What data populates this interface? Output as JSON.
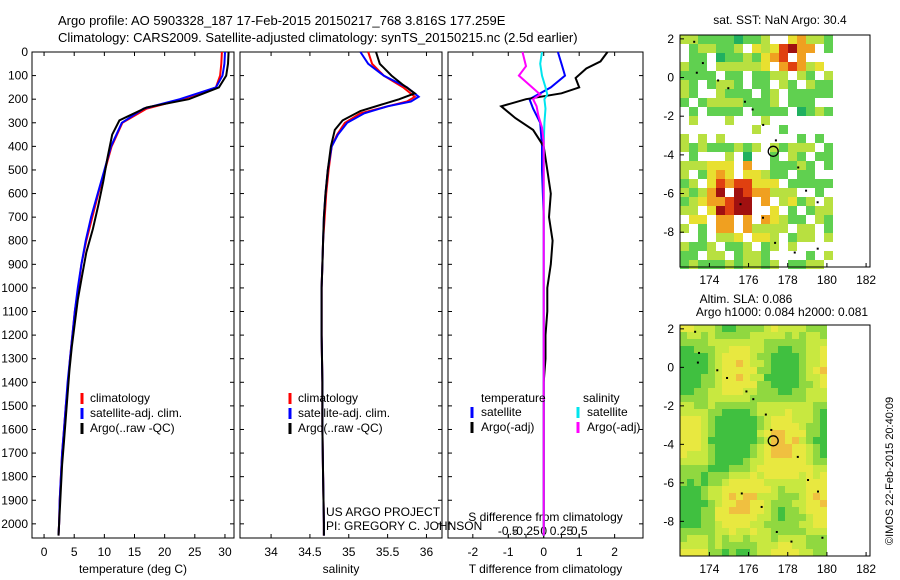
{
  "header": {
    "line1": "Argo profile: AO 5903328_187 17-Feb-2015 20150217_768 3.816S 177.259E",
    "line2": "Climatology: CARS2009. Satellite-adjusted climatology: synTS_20150215.nc (2.5d earlier)"
  },
  "depth_ticks": [
    "0",
    "100",
    "200",
    "300",
    "400",
    "500",
    "600",
    "700",
    "800",
    "900",
    "1000",
    "1100",
    "1200",
    "1300",
    "1400",
    "1500",
    "1600",
    "1700",
    "1800",
    "1900",
    "2000"
  ],
  "colors": {
    "clim": "#ff0000",
    "sat": "#0000ff",
    "argo": "#000000",
    "sat_s": "#00e5ee",
    "argo_s": "#ff00ff"
  },
  "chart_data": [
    {
      "type": "line",
      "id": "temperature",
      "xlabel": "temperature (deg C)",
      "ylabel": "",
      "xlim": [
        -2,
        31.5
      ],
      "ylim": [
        2060,
        0
      ],
      "xticks": [
        0,
        5,
        10,
        15,
        20,
        25,
        30
      ],
      "xtick_labels": [
        "0",
        "5",
        "10",
        "15",
        "20",
        "25",
        "30"
      ],
      "legend": [
        "climatology",
        "satellite-adj. clim.",
        "Argo(..raw -QC)"
      ],
      "series": [
        {
          "name": "climatology",
          "color": "#ff0000",
          "points": [
            [
              29.5,
              0
            ],
            [
              29.4,
              50
            ],
            [
              29.2,
              100
            ],
            [
              28.5,
              150
            ],
            [
              23,
              200
            ],
            [
              17,
              240
            ],
            [
              13,
              300
            ],
            [
              11.2,
              400
            ],
            [
              10.1,
              500
            ],
            [
              9,
              600
            ],
            [
              8,
              700
            ],
            [
              7,
              800
            ],
            [
              6.2,
              900
            ],
            [
              5.7,
              1000
            ],
            [
              5.1,
              1100
            ],
            [
              4.7,
              1200
            ],
            [
              4.3,
              1300
            ],
            [
              4,
              1400
            ],
            [
              3.6,
              1500
            ],
            [
              3.3,
              1600
            ],
            [
              3,
              1700
            ],
            [
              2.8,
              1800
            ],
            [
              2.6,
              1900
            ],
            [
              2.5,
              2000
            ],
            [
              2.4,
              2050
            ]
          ]
        },
        {
          "name": "satellite-adj. clim.",
          "color": "#0000ff",
          "points": [
            [
              30,
              0
            ],
            [
              29.9,
              50
            ],
            [
              29.6,
              100
            ],
            [
              28.5,
              150
            ],
            [
              22.5,
              200
            ],
            [
              16.5,
              240
            ],
            [
              12.9,
              300
            ],
            [
              11.1,
              400
            ],
            [
              10,
              500
            ],
            [
              8.9,
              600
            ],
            [
              7.8,
              700
            ],
            [
              6.9,
              800
            ],
            [
              6.2,
              900
            ],
            [
              5.6,
              1000
            ],
            [
              5.1,
              1100
            ],
            [
              4.7,
              1200
            ],
            [
              4.3,
              1300
            ],
            [
              3.9,
              1400
            ],
            [
              3.6,
              1500
            ],
            [
              3.3,
              1600
            ],
            [
              3,
              1700
            ],
            [
              2.8,
              1800
            ],
            [
              2.6,
              1900
            ],
            [
              2.5,
              2000
            ],
            [
              2.4,
              2050
            ]
          ]
        },
        {
          "name": "Argo(..raw -QC)",
          "color": "#000000",
          "points": [
            [
              30.6,
              0
            ],
            [
              30.5,
              50
            ],
            [
              30.2,
              100
            ],
            [
              29,
              150
            ],
            [
              24,
              200
            ],
            [
              17,
              235
            ],
            [
              12.5,
              290
            ],
            [
              11.3,
              350
            ],
            [
              10.5,
              450
            ],
            [
              9.8,
              550
            ],
            [
              9,
              650
            ],
            [
              8.1,
              750
            ],
            [
              7,
              850
            ],
            [
              6.3,
              950
            ],
            [
              5.6,
              1050
            ],
            [
              5.1,
              1150
            ],
            [
              4.6,
              1250
            ],
            [
              4.2,
              1350
            ],
            [
              3.9,
              1450
            ],
            [
              3.6,
              1550
            ],
            [
              3.3,
              1650
            ],
            [
              3,
              1750
            ],
            [
              2.8,
              1850
            ],
            [
              2.6,
              1950
            ],
            [
              2.5,
              2000
            ],
            [
              2.4,
              2050
            ]
          ]
        }
      ]
    },
    {
      "type": "line",
      "id": "salinity",
      "xlabel": "salinity",
      "ylabel": "",
      "xlim": [
        33.6,
        36.2
      ],
      "ylim": [
        2060,
        0
      ],
      "xticks": [
        34,
        34.5,
        35,
        35.5,
        36
      ],
      "xtick_labels": [
        "34",
        "34.5",
        "35",
        "35.5",
        "36"
      ],
      "legend": [
        "climatology",
        "satellite-adj. clim.",
        "Argo(..raw -QC)"
      ],
      "series": [
        {
          "name": "climatology",
          "color": "#ff0000",
          "points": [
            [
              35.25,
              0
            ],
            [
              35.3,
              50
            ],
            [
              35.45,
              100
            ],
            [
              35.7,
              150
            ],
            [
              35.85,
              190
            ],
            [
              35.75,
              210
            ],
            [
              35.5,
              230
            ],
            [
              35.15,
              260
            ],
            [
              34.95,
              300
            ],
            [
              34.85,
              350
            ],
            [
              34.78,
              400
            ],
            [
              34.74,
              500
            ],
            [
              34.71,
              600
            ],
            [
              34.69,
              700
            ],
            [
              34.67,
              800
            ],
            [
              34.66,
              900
            ],
            [
              34.65,
              1000
            ],
            [
              34.65,
              1200
            ],
            [
              34.66,
              1400
            ],
            [
              34.66,
              1600
            ],
            [
              34.67,
              1800
            ],
            [
              34.68,
              2000
            ],
            [
              34.68,
              2050
            ]
          ]
        },
        {
          "name": "satellite-adj. clim.",
          "color": "#0000ff",
          "points": [
            [
              35.15,
              0
            ],
            [
              35.25,
              50
            ],
            [
              35.45,
              100
            ],
            [
              35.75,
              150
            ],
            [
              35.9,
              190
            ],
            [
              35.8,
              210
            ],
            [
              35.5,
              230
            ],
            [
              35.2,
              260
            ],
            [
              34.98,
              300
            ],
            [
              34.86,
              350
            ],
            [
              34.78,
              400
            ],
            [
              34.73,
              500
            ],
            [
              34.7,
              600
            ],
            [
              34.68,
              700
            ],
            [
              34.67,
              800
            ],
            [
              34.66,
              900
            ],
            [
              34.65,
              1000
            ],
            [
              34.65,
              1200
            ],
            [
              34.66,
              1400
            ],
            [
              34.66,
              1600
            ],
            [
              34.67,
              1800
            ],
            [
              34.68,
              2000
            ],
            [
              34.68,
              2050
            ]
          ]
        },
        {
          "name": "Argo(..raw -QC)",
          "color": "#000000",
          "points": [
            [
              35.35,
              0
            ],
            [
              35.4,
              50
            ],
            [
              35.55,
              100
            ],
            [
              35.7,
              140
            ],
            [
              35.85,
              175
            ],
            [
              35.65,
              200
            ],
            [
              35.45,
              220
            ],
            [
              35.15,
              250
            ],
            [
              34.92,
              290
            ],
            [
              34.82,
              330
            ],
            [
              34.77,
              400
            ],
            [
              34.73,
              500
            ],
            [
              34.7,
              600
            ],
            [
              34.68,
              700
            ],
            [
              34.67,
              800
            ],
            [
              34.66,
              900
            ],
            [
              34.65,
              1000
            ],
            [
              34.65,
              1200
            ],
            [
              34.66,
              1400
            ],
            [
              34.66,
              1600
            ],
            [
              34.67,
              1800
            ],
            [
              34.68,
              2000
            ],
            [
              34.68,
              2050
            ]
          ]
        }
      ]
    },
    {
      "type": "line",
      "id": "difference",
      "xlabel": "T difference from climatology",
      "xlabel2": "S difference from climatology",
      "ylabel": "",
      "xlim": [
        -2.7,
        2.8
      ],
      "ylim": [
        2060,
        0
      ],
      "xticks": [
        -2,
        -1,
        0,
        1,
        2
      ],
      "xtick_labels": [
        "-2",
        "-1",
        "0",
        "1",
        "2"
      ],
      "xticks_top": [
        -1,
        -0.5,
        0,
        0.5,
        1
      ],
      "xtick_labels_top": [
        "-0.5",
        "-0.25",
        "0",
        "0.25",
        "0.5"
      ],
      "legend_headers": [
        "temperature",
        "salinity"
      ],
      "legend": [
        "satellite",
        "Argo(-adj)",
        "satellite",
        "Argo(-adj)"
      ],
      "series": [
        {
          "name": "T satellite",
          "color": "#0000ff",
          "points": [
            [
              0.4,
              0
            ],
            [
              0.5,
              50
            ],
            [
              0.6,
              100
            ],
            [
              0.2,
              150
            ],
            [
              -0.4,
              200
            ],
            [
              -0.3,
              240
            ],
            [
              -0.1,
              300
            ],
            [
              -0.05,
              400
            ],
            [
              -0.05,
              500
            ],
            [
              0,
              700
            ],
            [
              0,
              1000
            ],
            [
              0,
              1500
            ],
            [
              0,
              2050
            ]
          ]
        },
        {
          "name": "T Argo(-adj)",
          "color": "#000000",
          "points": [
            [
              1.8,
              0
            ],
            [
              1.6,
              40
            ],
            [
              1.2,
              70
            ],
            [
              0.9,
              110
            ],
            [
              1,
              150
            ],
            [
              0.5,
              175
            ],
            [
              -0.5,
              200
            ],
            [
              -1.2,
              230
            ],
            [
              -0.8,
              280
            ],
            [
              -0.3,
              330
            ],
            [
              0,
              400
            ],
            [
              0.1,
              500
            ],
            [
              0.2,
              600
            ],
            [
              0.15,
              700
            ],
            [
              0.25,
              800
            ],
            [
              0.2,
              900
            ],
            [
              0.1,
              1000
            ],
            [
              0.1,
              1100
            ],
            [
              0.05,
              1200
            ],
            [
              0.05,
              1300
            ],
            [
              0,
              1400
            ],
            [
              0,
              1600
            ],
            [
              0,
              1800
            ],
            [
              0,
              2000
            ],
            [
              0,
              2050
            ]
          ]
        },
        {
          "name": "S satellite",
          "color": "#00e5ee",
          "points": [
            [
              -0.05,
              0
            ],
            [
              -0.1,
              50
            ],
            [
              -0.05,
              100
            ],
            [
              0.05,
              150
            ],
            [
              0.1,
              180
            ],
            [
              0.02,
              200
            ],
            [
              0.05,
              240
            ],
            [
              0.02,
              300
            ],
            [
              0,
              400
            ],
            [
              0,
              600
            ],
            [
              0,
              1000
            ],
            [
              0,
              1500
            ],
            [
              0,
              2050
            ]
          ]
        },
        {
          "name": "S Argo(-adj)",
          "color": "#ff00ff",
          "points": [
            [
              -0.6,
              0
            ],
            [
              -0.5,
              60
            ],
            [
              -0.7,
              100
            ],
            [
              -0.4,
              140
            ],
            [
              -0.1,
              180
            ],
            [
              -0.3,
              200
            ],
            [
              -0.2,
              230
            ],
            [
              -0.15,
              270
            ],
            [
              -0.05,
              320
            ],
            [
              0,
              380
            ],
            [
              0,
              500
            ],
            [
              0,
              1000
            ],
            [
              0,
              2050
            ]
          ]
        }
      ]
    },
    {
      "type": "heatmap",
      "id": "sst_map",
      "title": "sat. SST: NaN Argo: 30.4",
      "xlim": [
        172.5,
        182.2
      ],
      "ylim": [
        -9.8,
        2.2
      ],
      "xticks": [
        174,
        176,
        178,
        180,
        182
      ],
      "xtick_labels": [
        "174",
        "176",
        "178",
        "180",
        "182"
      ],
      "yticks": [
        2,
        0,
        -2,
        -4,
        -6,
        -8
      ],
      "ytick_labels": [
        "2",
        "0",
        "-2",
        "-4",
        "-6",
        "-8"
      ],
      "argo_position": [
        177.259,
        -3.816
      ]
    },
    {
      "type": "heatmap",
      "id": "sla_map",
      "title": "Altim. SLA: 0.086",
      "subtitle": "Argo h1000: 0.084 h2000: 0.081",
      "xlim": [
        172.5,
        182.2
      ],
      "ylim": [
        -9.8,
        2.2
      ],
      "xticks": [
        174,
        176,
        178,
        180,
        182
      ],
      "xtick_labels": [
        "174",
        "176",
        "178",
        "180",
        "182"
      ],
      "yticks": [
        2,
        0,
        -2,
        -4,
        -6,
        -8
      ],
      "ytick_labels": [
        "2",
        "0",
        "-2",
        "-4",
        "-6",
        "-8"
      ],
      "argo_position": [
        177.259,
        -3.816
      ]
    }
  ],
  "annotations": {
    "project": "US ARGO PROJECT",
    "pi": "PI: GREGORY C. JOHNSON",
    "credit": "©IMOS 22-Feb-2015 20:40:09"
  }
}
